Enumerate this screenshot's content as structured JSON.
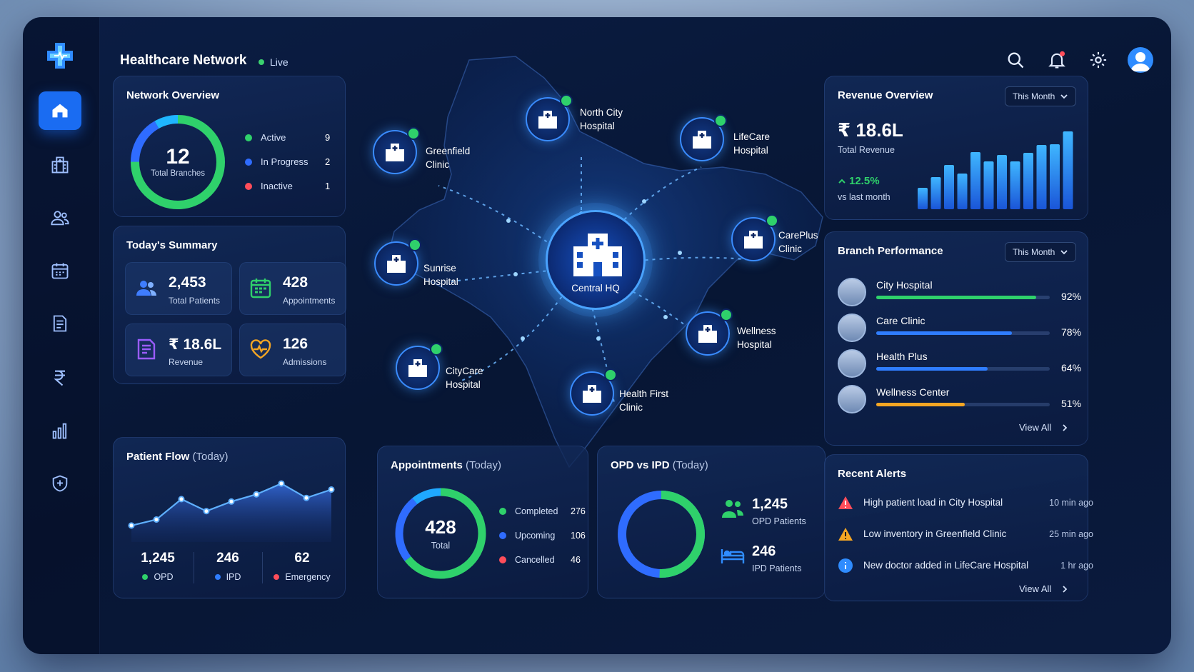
{
  "header": {
    "title": "Healthcare Network",
    "status": "Live"
  },
  "colors": {
    "accent": "#1a6cf2",
    "active": "#2fd16b",
    "in_progress": "#2f6cff",
    "inactive": "#ff4d5a",
    "warning": "#f5a623",
    "info": "#2f8cff"
  },
  "sidebar": {
    "items": [
      {
        "icon": "home-icon",
        "active": true
      },
      {
        "icon": "hospital-icon"
      },
      {
        "icon": "users-icon"
      },
      {
        "icon": "calendar-icon"
      },
      {
        "icon": "document-icon"
      },
      {
        "icon": "rupee-icon"
      },
      {
        "icon": "bar-chart-icon"
      },
      {
        "icon": "shield-icon"
      }
    ]
  },
  "network_overview": {
    "title": "Network Overview",
    "total": "12",
    "total_label": "Total Branches",
    "legend": [
      {
        "label": "Active",
        "value": "9"
      },
      {
        "label": "In Progress",
        "value": "2"
      },
      {
        "label": "Inactive",
        "value": "1"
      }
    ]
  },
  "summary": {
    "title": "Today's Summary",
    "tiles": [
      {
        "value": "2,453",
        "label": "Total Patients",
        "icon": "patients-icon"
      },
      {
        "value": "428",
        "label": "Appointments",
        "icon": "calendar-icon"
      },
      {
        "value": "₹ 18.6L",
        "label": "Revenue",
        "icon": "invoice-icon"
      },
      {
        "value": "126",
        "label": "Admissions",
        "icon": "heart-pulse-icon"
      }
    ]
  },
  "map": {
    "hq": "Central HQ",
    "branches": [
      {
        "line1": "North City",
        "line2": "Hospital"
      },
      {
        "line1": "LifeCare",
        "line2": "Hospital"
      },
      {
        "line1": "Greenfield",
        "line2": "Clinic"
      },
      {
        "line1": "CarePlus",
        "line2": "Clinic"
      },
      {
        "line1": "Sunrise",
        "line2": "Hospital"
      },
      {
        "line1": "Wellness",
        "line2": "Hospital"
      },
      {
        "line1": "CityCare",
        "line2": "Hospital"
      },
      {
        "line1": "Health First",
        "line2": "Clinic"
      }
    ]
  },
  "revenue": {
    "title": "Revenue Overview",
    "period": "This Month",
    "amount": "₹ 18.6L",
    "amount_label": "Total Revenue",
    "change": "12.5%",
    "change_label": "vs last month",
    "bars": [
      30,
      45,
      62,
      50,
      80,
      67,
      76,
      67,
      79,
      90,
      91,
      109
    ]
  },
  "branch_performance": {
    "title": "Branch Performance",
    "period": "This Month",
    "rows": [
      {
        "name": "City Hospital",
        "percent": 92,
        "label": "92%",
        "color": "#2fd16b"
      },
      {
        "name": "Care Clinic",
        "percent": 78,
        "label": "78%",
        "color": "#2f7dff"
      },
      {
        "name": "Health Plus",
        "percent": 64,
        "label": "64%",
        "color": "#2f7dff"
      },
      {
        "name": "Wellness Center",
        "percent": 51,
        "label": "51%",
        "color": "#f5a623"
      }
    ],
    "view_all": "View All"
  },
  "patient_flow": {
    "title": "Patient Flow",
    "title_sub": "(Today)",
    "points": [
      18,
      28,
      62,
      42,
      58,
      70,
      88,
      64,
      78
    ],
    "stats": [
      {
        "value": "1,245",
        "label": "OPD",
        "color": "#2fd16b"
      },
      {
        "value": "246",
        "label": "IPD",
        "color": "#2f7dff"
      },
      {
        "value": "62",
        "label": "Emergency",
        "color": "#ff4d5a"
      }
    ]
  },
  "appointments": {
    "title": "Appointments",
    "title_sub": "(Today)",
    "total": "428",
    "total_label": "Total",
    "legend": [
      {
        "label": "Completed",
        "value": "276"
      },
      {
        "label": "Upcoming",
        "value": "106"
      },
      {
        "label": "Cancelled",
        "value": "46"
      }
    ]
  },
  "opd_ipd": {
    "title": "OPD vs IPD",
    "title_sub": "(Today)",
    "opd_value": "1,245",
    "opd_label": "OPD Patients",
    "ipd_value": "246",
    "ipd_label": "IPD Patients"
  },
  "alerts": {
    "title": "Recent Alerts",
    "items": [
      {
        "text": "High patient load in City Hospital",
        "time": "10 min ago",
        "icon": "error-icon"
      },
      {
        "text": "Low inventory in Greenfield Clinic",
        "time": "25 min ago",
        "icon": "warning-icon"
      },
      {
        "text": "New doctor added in LifeCare Hospital",
        "time": "1 hr ago",
        "icon": "info-icon"
      }
    ],
    "view_all": "View All"
  }
}
